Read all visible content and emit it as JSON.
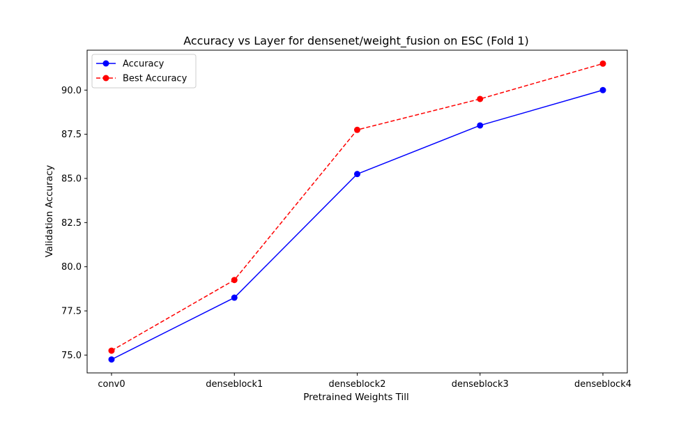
{
  "chart_data": {
    "type": "line",
    "title": "Accuracy vs Layer for densenet/weight_fusion on ESC (Fold 1)",
    "xlabel": "Pretrained Weights Till",
    "ylabel": "Validation Accuracy",
    "categories": [
      "conv0",
      "denseblock1",
      "denseblock2",
      "denseblock3",
      "denseblock4"
    ],
    "ylim": [
      73.99,
      92.26
    ],
    "yticks": [
      75.0,
      77.5,
      80.0,
      82.5,
      85.0,
      87.5,
      90.0
    ],
    "ytick_labels": [
      "75.0",
      "77.5",
      "80.0",
      "82.5",
      "85.0",
      "87.5",
      "90.0"
    ],
    "grid": false,
    "legend_position": "upper-left",
    "series": [
      {
        "name": "Accuracy",
        "color": "#0000ff",
        "line_style": "solid",
        "marker": "circle",
        "values": [
          74.75,
          78.25,
          85.25,
          88.0,
          90.0
        ]
      },
      {
        "name": "Best Accuracy",
        "color": "#ff0000",
        "line_style": "dashed",
        "marker": "circle",
        "values": [
          75.25,
          79.25,
          87.75,
          89.5,
          91.5
        ]
      }
    ]
  }
}
